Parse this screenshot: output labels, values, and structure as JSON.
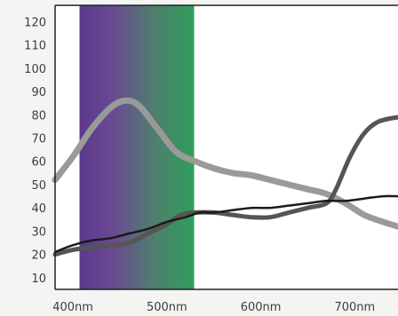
{
  "chart_data": {
    "type": "line",
    "title": "",
    "xlabel": "",
    "ylabel": "",
    "xlim": [
      381,
      746
    ],
    "ylim": [
      5,
      127
    ],
    "x_ticks": [
      {
        "value": 400,
        "label": "400nm"
      },
      {
        "value": 500,
        "label": "500nm"
      },
      {
        "value": 600,
        "label": "600nm"
      },
      {
        "value": 700,
        "label": "700nm"
      }
    ],
    "y_ticks": [
      10,
      20,
      30,
      40,
      50,
      60,
      70,
      80,
      90,
      100,
      110,
      120
    ],
    "y_tick_labels": [
      "10",
      "20",
      "30",
      "40",
      "50",
      "60",
      "70",
      "80",
      "90",
      "100",
      "110",
      "120"
    ],
    "shaded_band": {
      "x_from": 407,
      "x_to": 529,
      "colors": [
        "#5b3a8c",
        "#6a4a92",
        "#4f7e6e",
        "#2f9e5a"
      ]
    },
    "grid": false,
    "legend": "none",
    "series": [
      {
        "color": "#9a9a9a",
        "width": 7,
        "points": [
          [
            381,
            52
          ],
          [
            400,
            62
          ],
          [
            420,
            74
          ],
          [
            440,
            83
          ],
          [
            455,
            86
          ],
          [
            470,
            84
          ],
          [
            490,
            74
          ],
          [
            510,
            64
          ],
          [
            530,
            60
          ],
          [
            550,
            57
          ],
          [
            570,
            55
          ],
          [
            590,
            54
          ],
          [
            610,
            52
          ],
          [
            630,
            50
          ],
          [
            650,
            48
          ],
          [
            670,
            46
          ],
          [
            690,
            42
          ],
          [
            710,
            37
          ],
          [
            730,
            34
          ],
          [
            746,
            32
          ]
        ]
      },
      {
        "color": "#555555",
        "width": 5,
        "points": [
          [
            381,
            20
          ],
          [
            400,
            22
          ],
          [
            420,
            23
          ],
          [
            440,
            24
          ],
          [
            460,
            25
          ],
          [
            480,
            29
          ],
          [
            500,
            33
          ],
          [
            515,
            37
          ],
          [
            530,
            38
          ],
          [
            550,
            38
          ],
          [
            570,
            37
          ],
          [
            590,
            36
          ],
          [
            610,
            36
          ],
          [
            630,
            38
          ],
          [
            650,
            40
          ],
          [
            670,
            42
          ],
          [
            680,
            48
          ],
          [
            695,
            62
          ],
          [
            710,
            72
          ],
          [
            725,
            77
          ],
          [
            746,
            79
          ]
        ]
      },
      {
        "color": "#1a1a1a",
        "width": 2.5,
        "points": [
          [
            381,
            21
          ],
          [
            400,
            24
          ],
          [
            420,
            26
          ],
          [
            440,
            27
          ],
          [
            460,
            29
          ],
          [
            480,
            31
          ],
          [
            500,
            34
          ],
          [
            520,
            36
          ],
          [
            535,
            38
          ],
          [
            550,
            38
          ],
          [
            570,
            39
          ],
          [
            590,
            40
          ],
          [
            610,
            40
          ],
          [
            630,
            41
          ],
          [
            650,
            42
          ],
          [
            670,
            43
          ],
          [
            690,
            43
          ],
          [
            710,
            44
          ],
          [
            730,
            45
          ],
          [
            746,
            45
          ]
        ]
      }
    ]
  }
}
